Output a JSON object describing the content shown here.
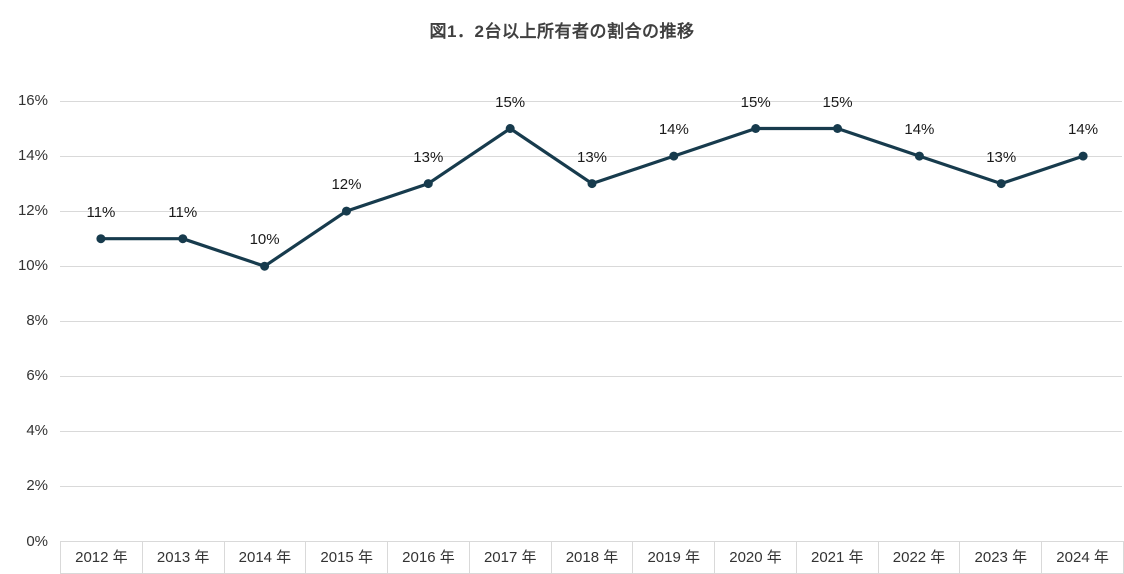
{
  "chart_data": {
    "type": "line",
    "title": "図1．2台以上所有者の割合の推移",
    "categories": [
      "2012 年",
      "2013 年",
      "2014 年",
      "2015 年",
      "2016 年",
      "2017 年",
      "2018 年",
      "2019 年",
      "2020 年",
      "2021 年",
      "2022 年",
      "2023 年",
      "2024 年"
    ],
    "values": [
      11,
      11,
      10,
      12,
      13,
      15,
      13,
      14,
      15,
      15,
      14,
      13,
      14
    ],
    "data_labels": [
      "11%",
      "11%",
      "10%",
      "12%",
      "13%",
      "15%",
      "13%",
      "14%",
      "15%",
      "15%",
      "14%",
      "13%",
      "14%"
    ],
    "unit": "%",
    "xlabel": "",
    "ylabel": "",
    "ylim": [
      0,
      16
    ],
    "ytick_step": 2,
    "ytick_labels": [
      "0%",
      "2%",
      "4%",
      "6%",
      "8%",
      "10%",
      "12%",
      "14%",
      "16%"
    ],
    "grid": true,
    "legend_position": "none",
    "colors": {
      "line": "#173b4d",
      "marker": "#173b4d",
      "gridline": "#d9d9d9",
      "axis_border": "#d9d9d9",
      "title_text": "#404040",
      "tick_text": "#333333",
      "data_label_text": "#1a1a1a",
      "background": "#ffffff"
    }
  }
}
